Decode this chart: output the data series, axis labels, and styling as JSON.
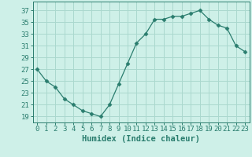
{
  "x": [
    0,
    1,
    2,
    3,
    4,
    5,
    6,
    7,
    8,
    9,
    10,
    11,
    12,
    13,
    14,
    15,
    16,
    17,
    18,
    19,
    20,
    21,
    22,
    23
  ],
  "y": [
    27,
    25,
    24,
    22,
    21,
    20,
    19.5,
    19,
    21,
    24.5,
    28,
    31.5,
    33,
    35.5,
    35.5,
    36,
    36,
    36.5,
    37,
    35.5,
    34.5,
    34,
    31,
    30
  ],
  "line_color": "#2a7d6e",
  "marker": "D",
  "marker_size": 2.5,
  "bg_color": "#cef0e8",
  "grid_color": "#aad8ce",
  "xlabel": "Humidex (Indice chaleur)",
  "xlabel_fontsize": 7.5,
  "ylabel_ticks": [
    19,
    21,
    23,
    25,
    27,
    29,
    31,
    33,
    35,
    37
  ],
  "xtick_labels": [
    "0",
    "1",
    "2",
    "3",
    "4",
    "5",
    "6",
    "7",
    "8",
    "9",
    "10",
    "11",
    "12",
    "13",
    "14",
    "15",
    "16",
    "17",
    "18",
    "19",
    "20",
    "21",
    "22",
    "23"
  ],
  "xlim": [
    -0.5,
    23.5
  ],
  "ylim": [
    18.0,
    38.5
  ],
  "tick_color": "#2a7d6e",
  "tick_fontsize": 6.5,
  "linewidth": 0.9
}
